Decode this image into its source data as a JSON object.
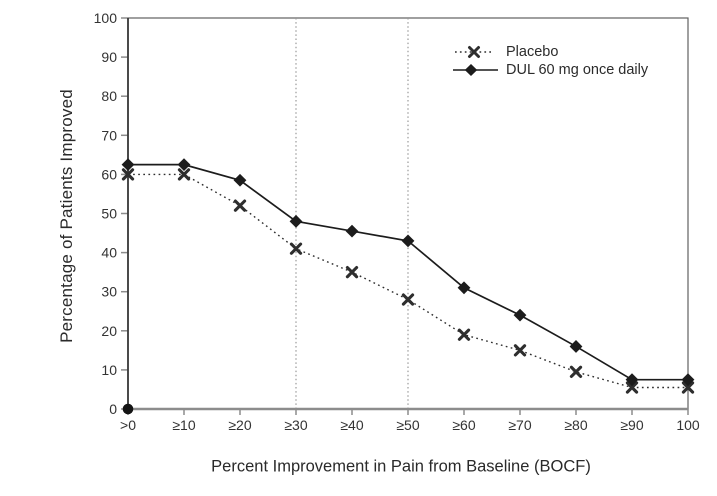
{
  "chart_data": {
    "type": "line",
    "title": "",
    "xlabel": "Percent Improvement in Pain from Baseline (BOCF)",
    "ylabel": "Percentage of Patients Improved",
    "categories": [
      ">0",
      "≥10",
      "≥20",
      "≥30",
      "≥40",
      "≥50",
      "≥60",
      "≥70",
      "≥80",
      "≥90",
      "100"
    ],
    "series": [
      {
        "name": "Placebo",
        "marker": "x",
        "line_style": "dotted",
        "color": "#2e2e2e",
        "values": [
          60,
          60,
          52,
          41,
          35,
          28,
          19,
          15,
          9.5,
          5.5,
          5.5
        ]
      },
      {
        "name": "DUL 60 mg once daily",
        "marker": "diamond",
        "line_style": "solid",
        "color": "#1c1c1c",
        "values": [
          62.5,
          62.5,
          58.5,
          48,
          45.5,
          43,
          31,
          24,
          16,
          7.5,
          7.5
        ]
      }
    ],
    "ylim": [
      0,
      100
    ],
    "y_ticks": [
      0,
      10,
      20,
      30,
      40,
      50,
      60,
      70,
      80,
      90,
      100
    ],
    "reference_lines_x": [
      "≥30",
      "≥50"
    ],
    "origin_marker": {
      "at_category": ">0",
      "value": 0,
      "shape": "filled-circle"
    },
    "grid": false,
    "legend_position": "top-right-inside"
  },
  "colors": {
    "background": "#ffffff",
    "plot_border": "#606060",
    "y_axis_line": "#3a3a3a",
    "x_axis_line": "#8c8c8c",
    "tick": "#8c8c8c",
    "tick_text": "#333333",
    "title_text": "#2a2a2a",
    "reference_line": "#9a9a9a",
    "origin_dot": "#141414"
  }
}
